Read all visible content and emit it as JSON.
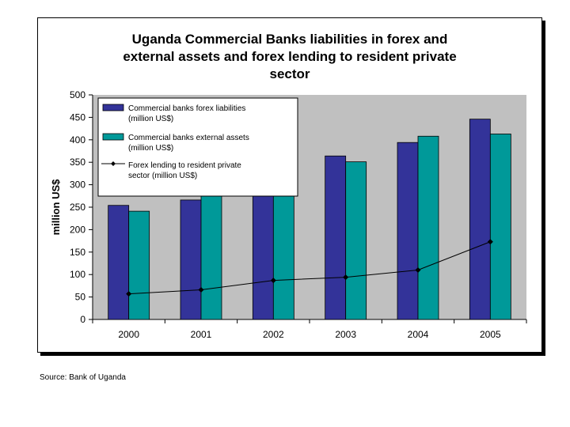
{
  "chart_data": {
    "type": "bar",
    "title_lines": [
      "Uganda Commercial Banks liabilities in forex and",
      "external assets and forex lending to resident private",
      "sector"
    ],
    "ylabel": "million US$",
    "xlabel": "",
    "ylim": [
      0,
      500
    ],
    "yticks": [
      0,
      50,
      100,
      150,
      200,
      250,
      300,
      350,
      400,
      450,
      500
    ],
    "categories": [
      "2000",
      "2001",
      "2002",
      "2003",
      "2004",
      "2005"
    ],
    "grid": false,
    "legend_position": "top-left",
    "plot_background": "#c0c0c0",
    "series": [
      {
        "name_lines": [
          "Commercial banks forex liabilities",
          "(million US$)"
        ],
        "kind": "bar",
        "color": "#333399",
        "values": [
          254,
          266,
          299,
          364,
          394,
          446
        ]
      },
      {
        "name_lines": [
          "Commercial banks external assets",
          "(million US$)"
        ],
        "kind": "bar",
        "color": "#009999",
        "values": [
          241,
          283,
          314,
          351,
          408,
          413
        ]
      },
      {
        "name_lines": [
          "Forex lending to resident private",
          "sector (million US$)"
        ],
        "kind": "line",
        "color": "#000000",
        "marker": "diamond",
        "values": [
          57,
          66,
          87,
          94,
          110,
          173
        ]
      }
    ]
  },
  "source_note": "Source: Bank of Uganda"
}
